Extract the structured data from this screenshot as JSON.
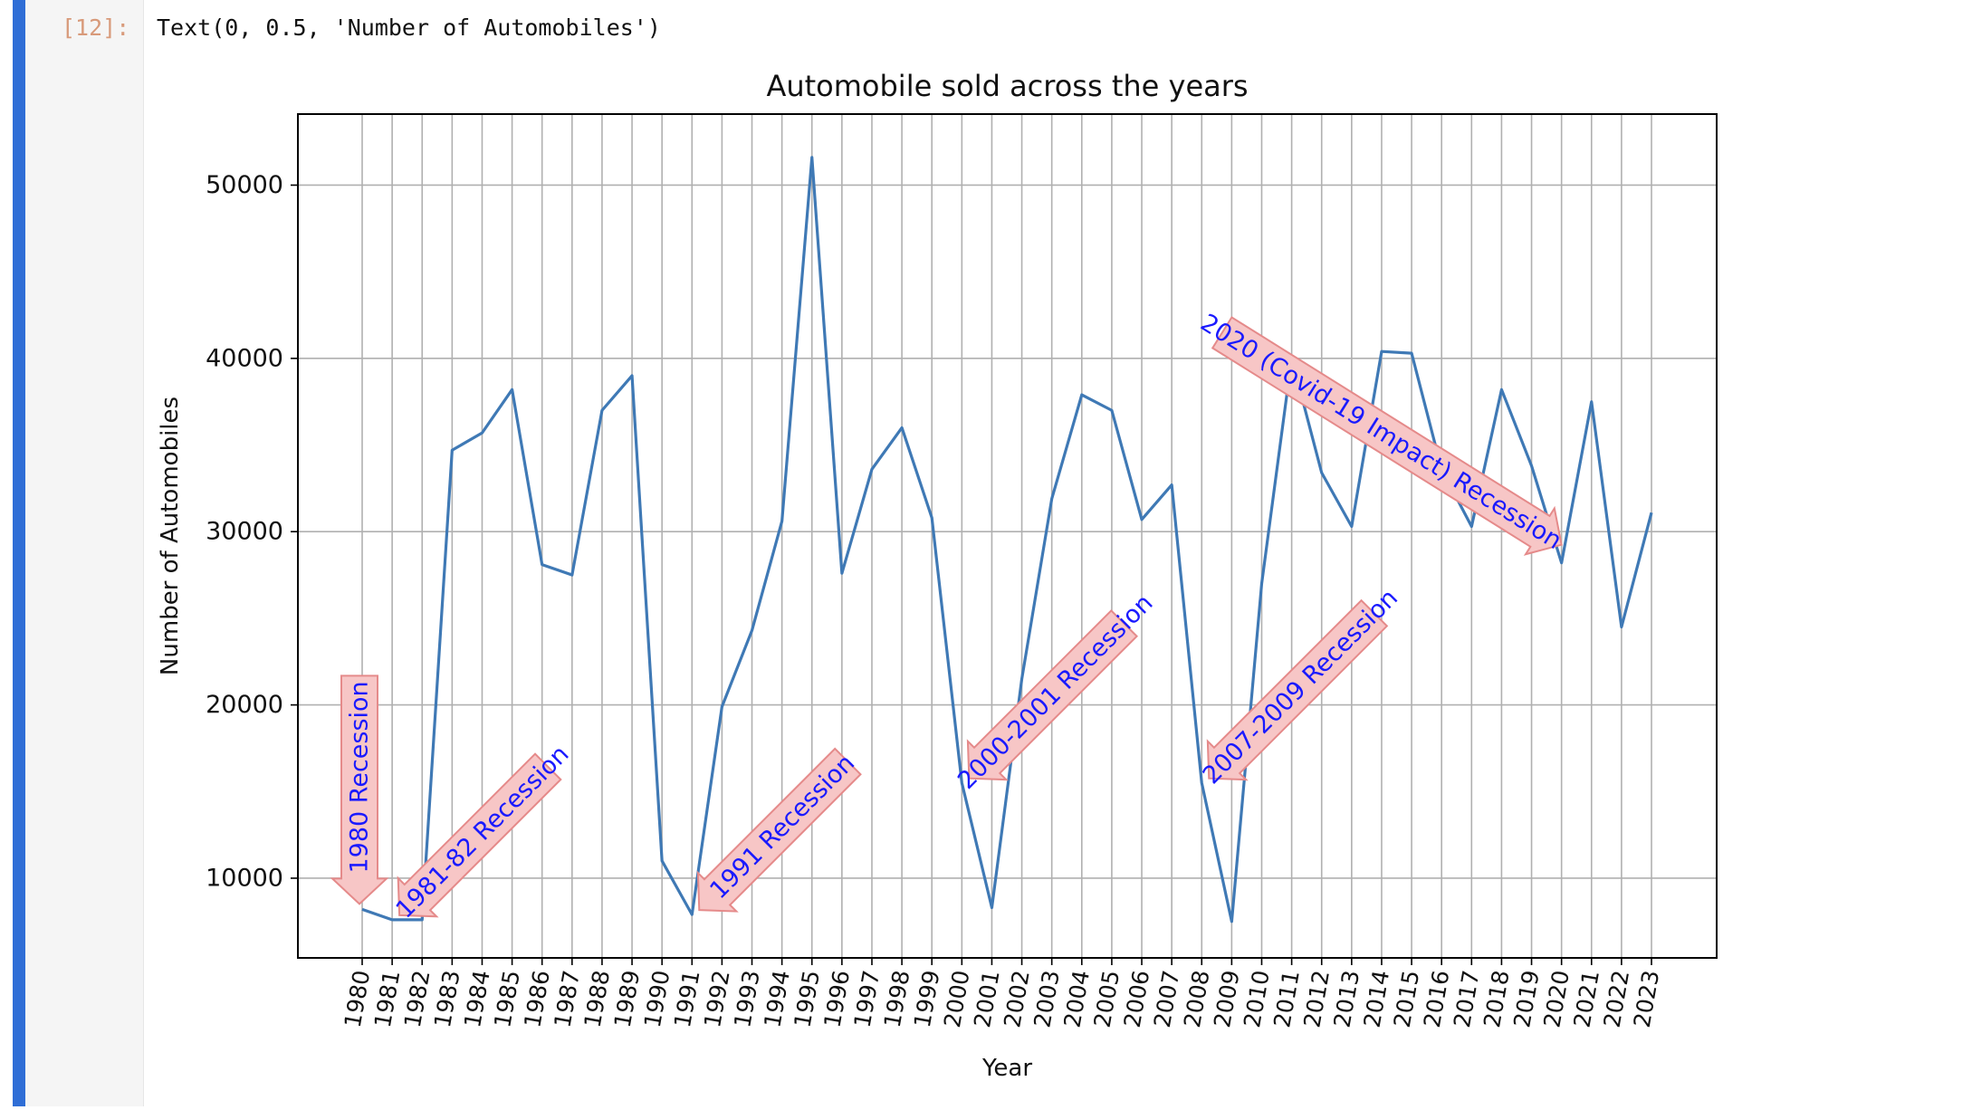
{
  "notebook": {
    "prompt": "[12]:",
    "output_text": "Text(0, 0.5, 'Number of Automobiles')"
  },
  "chart_data": {
    "type": "line",
    "title": "Automobile sold across the years",
    "xlabel": "Year",
    "ylabel": "Number of Automobiles",
    "x": [
      1980,
      1981,
      1982,
      1983,
      1984,
      1985,
      1986,
      1987,
      1988,
      1989,
      1990,
      1991,
      1992,
      1993,
      1994,
      1995,
      1996,
      1997,
      1998,
      1999,
      2000,
      2001,
      2002,
      2003,
      2004,
      2005,
      2006,
      2007,
      2008,
      2009,
      2010,
      2011,
      2012,
      2013,
      2014,
      2015,
      2016,
      2017,
      2018,
      2019,
      2020,
      2021,
      2022,
      2023
    ],
    "series": [
      {
        "color": "#3f79b5",
        "values": [
          8200,
          7600,
          7600,
          34700,
          35700,
          38200,
          28100,
          27500,
          37000,
          39000,
          11000,
          7900,
          19900,
          24300,
          30600,
          51600,
          27600,
          33600,
          36000,
          30800,
          15500,
          8300,
          21500,
          31900,
          37900,
          37000,
          30700,
          32700,
          15500,
          7500,
          27000,
          40000,
          33400,
          30300,
          40400,
          40300,
          33600,
          30300,
          38200,
          33800,
          28200,
          37500,
          24500,
          31100
        ]
      }
    ],
    "ylim": [
      5400,
      54100
    ],
    "yticks": [
      10000,
      20000,
      30000,
      40000,
      50000
    ],
    "grid": true,
    "annotations": [
      {
        "text": "1980 Recession",
        "x": 1980,
        "y": 8200
      },
      {
        "text": "1981-82 Recession",
        "x": 1981,
        "y": 7600
      },
      {
        "text": "1991 Recession",
        "x": 1991,
        "y": 7900
      },
      {
        "text": "2000-2001 Recession",
        "x": 2000,
        "y": 15500
      },
      {
        "text": "2007-2009 Recession",
        "x": 2008,
        "y": 15500
      },
      {
        "text": "2020 (Covid-19 Impact) Recession",
        "x": 2020,
        "y": 28200
      }
    ],
    "colors": {
      "annotation_text": "#1a1aff",
      "annotation_fill": "#f7c6c6",
      "annotation_edge": "#e58a8a",
      "grid": "#b0b0b0"
    }
  }
}
